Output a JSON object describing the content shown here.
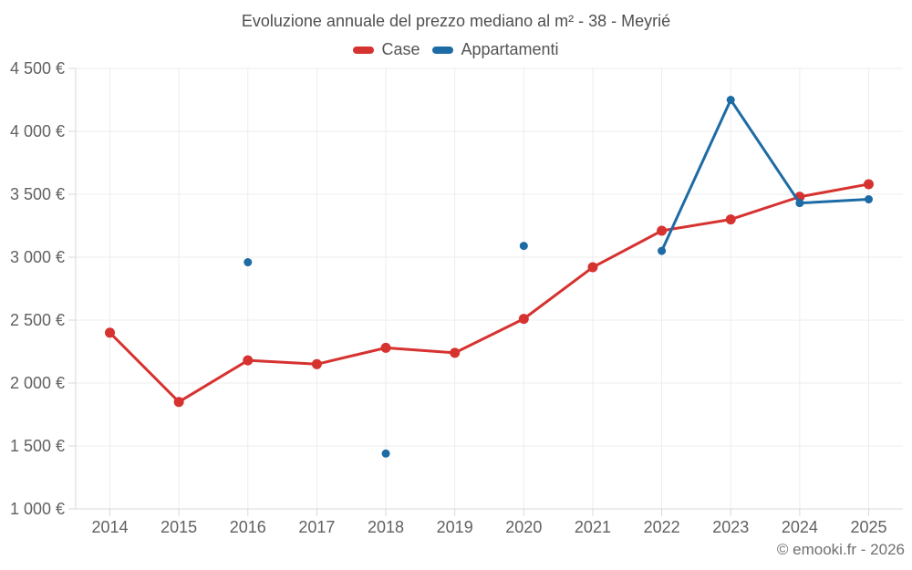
{
  "chart": {
    "title": "Evoluzione annuale del prezzo mediano al m² - 38 - Meyrié"
  },
  "footer": {
    "copyright": "© emooki.fr - 2026"
  },
  "colors": {
    "case_red": "#d63230",
    "appartamenti_blue": "#1d6ba5",
    "gridline": "#ececec",
    "axis_line": "#d9d9d9",
    "tick_text": "#616161"
  },
  "chart_data": {
    "type": "line",
    "title": "Evoluzione annuale del prezzo mediano al m² - 38 - Meyrié",
    "categories": [
      "2014",
      "2015",
      "2016",
      "2017",
      "2018",
      "2019",
      "2020",
      "2021",
      "2022",
      "2023",
      "2024",
      "2025"
    ],
    "series": [
      {
        "name": "Case",
        "color": "#d63230",
        "marker_radius": 5.5,
        "values": [
          2400,
          1850,
          2180,
          2150,
          2280,
          2240,
          2510,
          2920,
          3210,
          3300,
          3480,
          3580
        ]
      },
      {
        "name": "Appartamenti",
        "color": "#1d6ba5",
        "marker_radius": 4.5,
        "values": [
          null,
          null,
          2960,
          null,
          1440,
          null,
          3090,
          null,
          3050,
          4250,
          3430,
          3460
        ]
      }
    ],
    "ylim": [
      1000,
      4500
    ],
    "y_ticks": [
      {
        "value": 1000,
        "label": "1 000 €"
      },
      {
        "value": 1500,
        "label": "1 500 €"
      },
      {
        "value": 2000,
        "label": "2 000 €"
      },
      {
        "value": 2500,
        "label": "2 500 €"
      },
      {
        "value": 3000,
        "label": "3 000 €"
      },
      {
        "value": 3500,
        "label": "3 500 €"
      },
      {
        "value": 4000,
        "label": "4 000 €"
      },
      {
        "value": 4500,
        "label": "4 500 €"
      }
    ],
    "xlabel": "",
    "ylabel": "",
    "grid": true,
    "legend_position": "top"
  }
}
